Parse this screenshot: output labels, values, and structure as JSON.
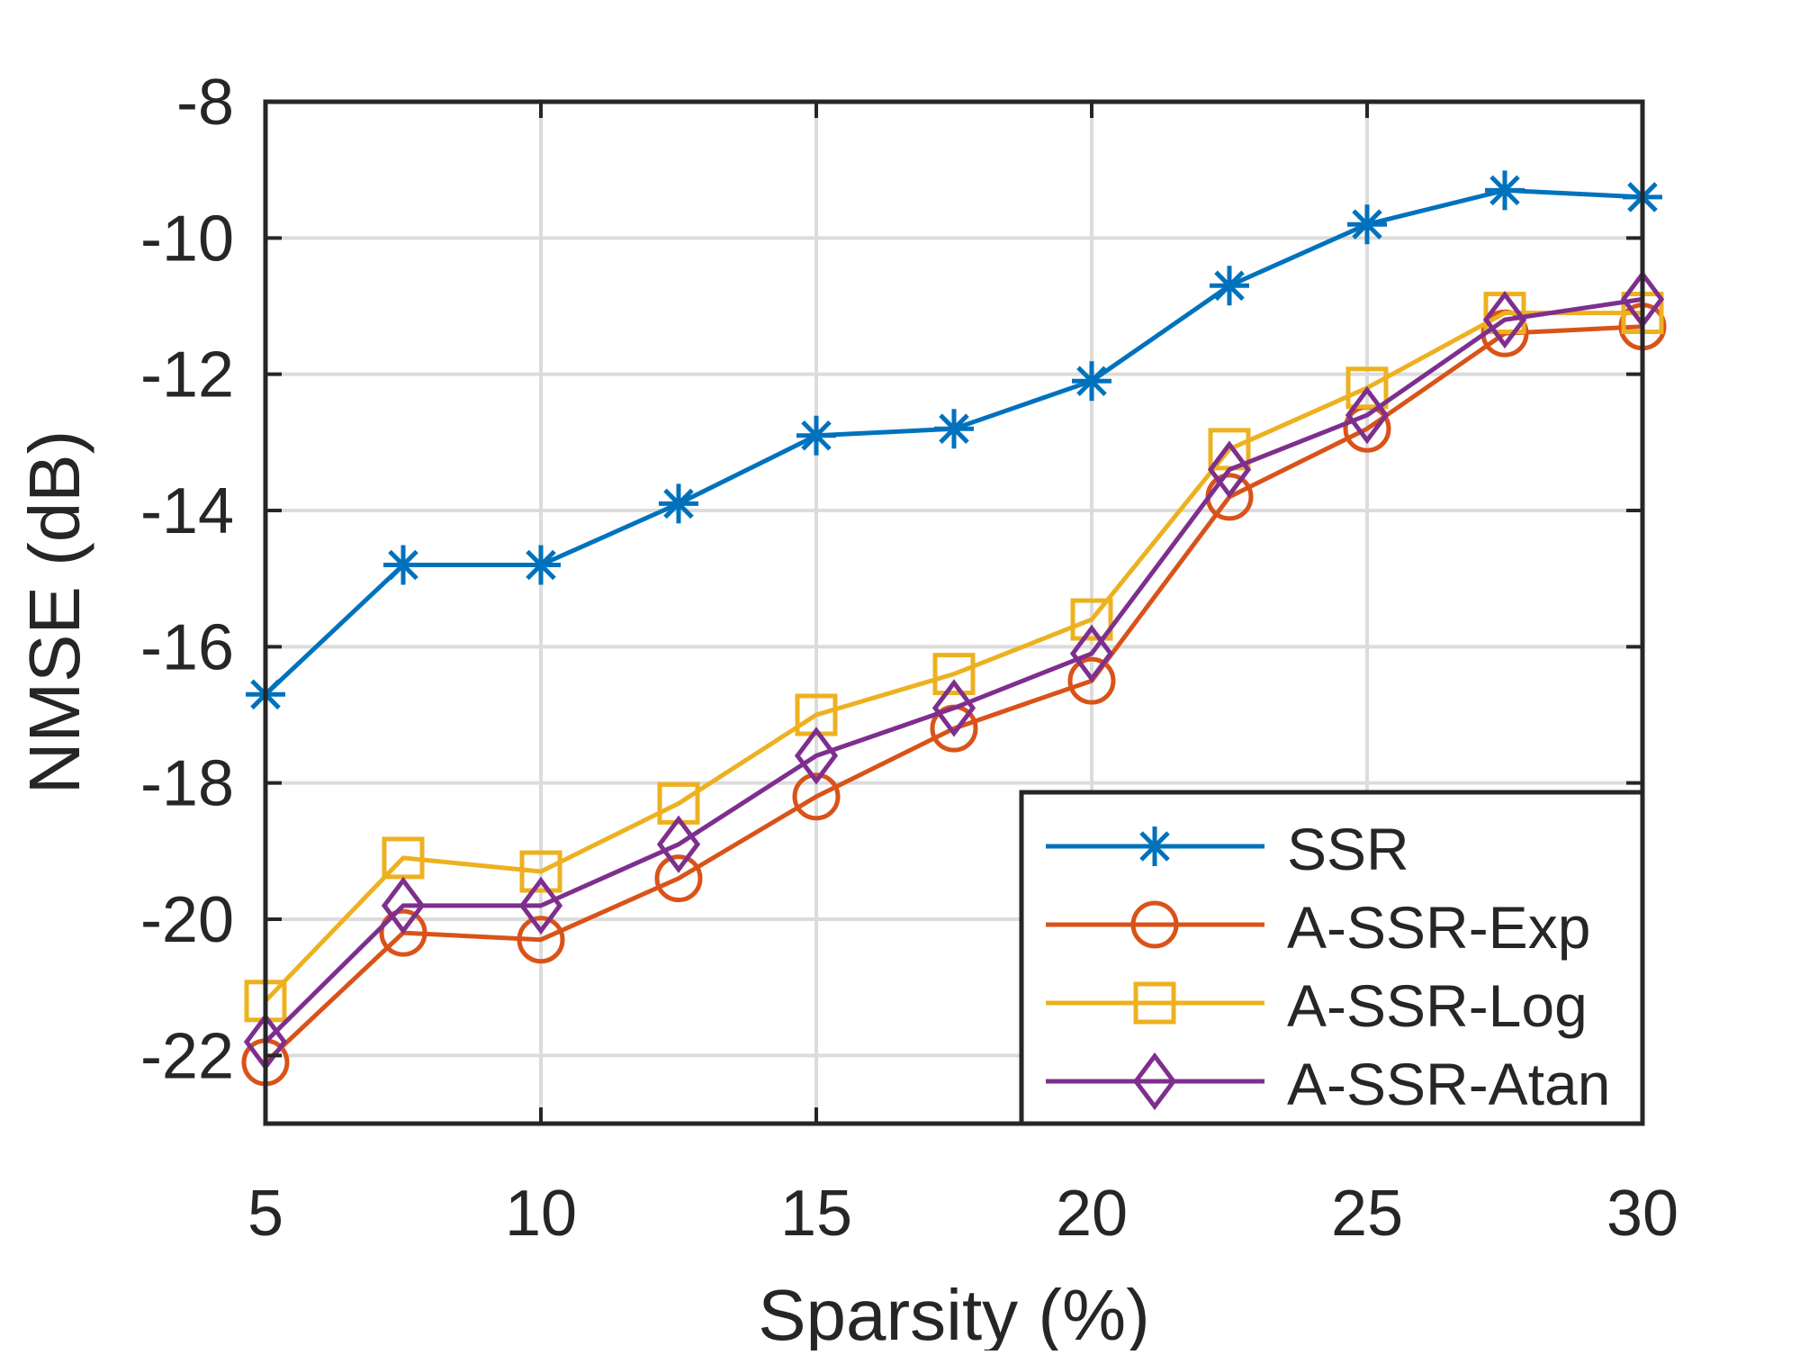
{
  "chart_data": {
    "type": "line",
    "title": "",
    "xlabel": "Sparsity (%)",
    "ylabel": "NMSE (dB)",
    "xlim": [
      5,
      30
    ],
    "ylim": [
      -23,
      -8
    ],
    "xticks": [
      5,
      10,
      15,
      20,
      25,
      30
    ],
    "xtick_labels": [
      "5",
      "10",
      "15",
      "20",
      "25",
      "30"
    ],
    "yticks": [
      -8,
      -10,
      -12,
      -14,
      -16,
      -18,
      -20,
      -22
    ],
    "ytick_labels": [
      "-8",
      "-10",
      "-12",
      "-14",
      "-16",
      "-18",
      "-20",
      "-22"
    ],
    "grid": true,
    "legend_position": "bottom-right",
    "x": [
      5,
      7.5,
      10,
      12.5,
      15,
      17.5,
      20,
      22.5,
      25,
      27.5,
      30
    ],
    "series": [
      {
        "name": "SSR",
        "color": "#0072BD",
        "marker": "asterisk",
        "values": [
          -16.7,
          -14.8,
          -14.8,
          -13.9,
          -12.9,
          -12.8,
          -12.1,
          -10.7,
          -9.8,
          -9.3,
          -9.4
        ]
      },
      {
        "name": "A-SSR-Exp",
        "color": "#D95319",
        "marker": "circle",
        "values": [
          -22.1,
          -20.2,
          -20.3,
          -19.4,
          -18.2,
          -17.2,
          -16.5,
          -13.8,
          -12.8,
          -11.4,
          -11.3
        ]
      },
      {
        "name": "A-SSR-Log",
        "color": "#EDB120",
        "marker": "square",
        "values": [
          -21.2,
          -19.1,
          -19.3,
          -18.3,
          -17.0,
          -16.4,
          -15.6,
          -13.1,
          -12.2,
          -11.1,
          -11.1
        ]
      },
      {
        "name": "A-SSR-Atan",
        "color": "#7E2F8E",
        "marker": "diamond",
        "values": [
          -21.8,
          -19.8,
          -19.8,
          -18.9,
          -17.6,
          -16.9,
          -16.1,
          -13.4,
          -12.6,
          -11.2,
          -10.9
        ]
      }
    ]
  }
}
